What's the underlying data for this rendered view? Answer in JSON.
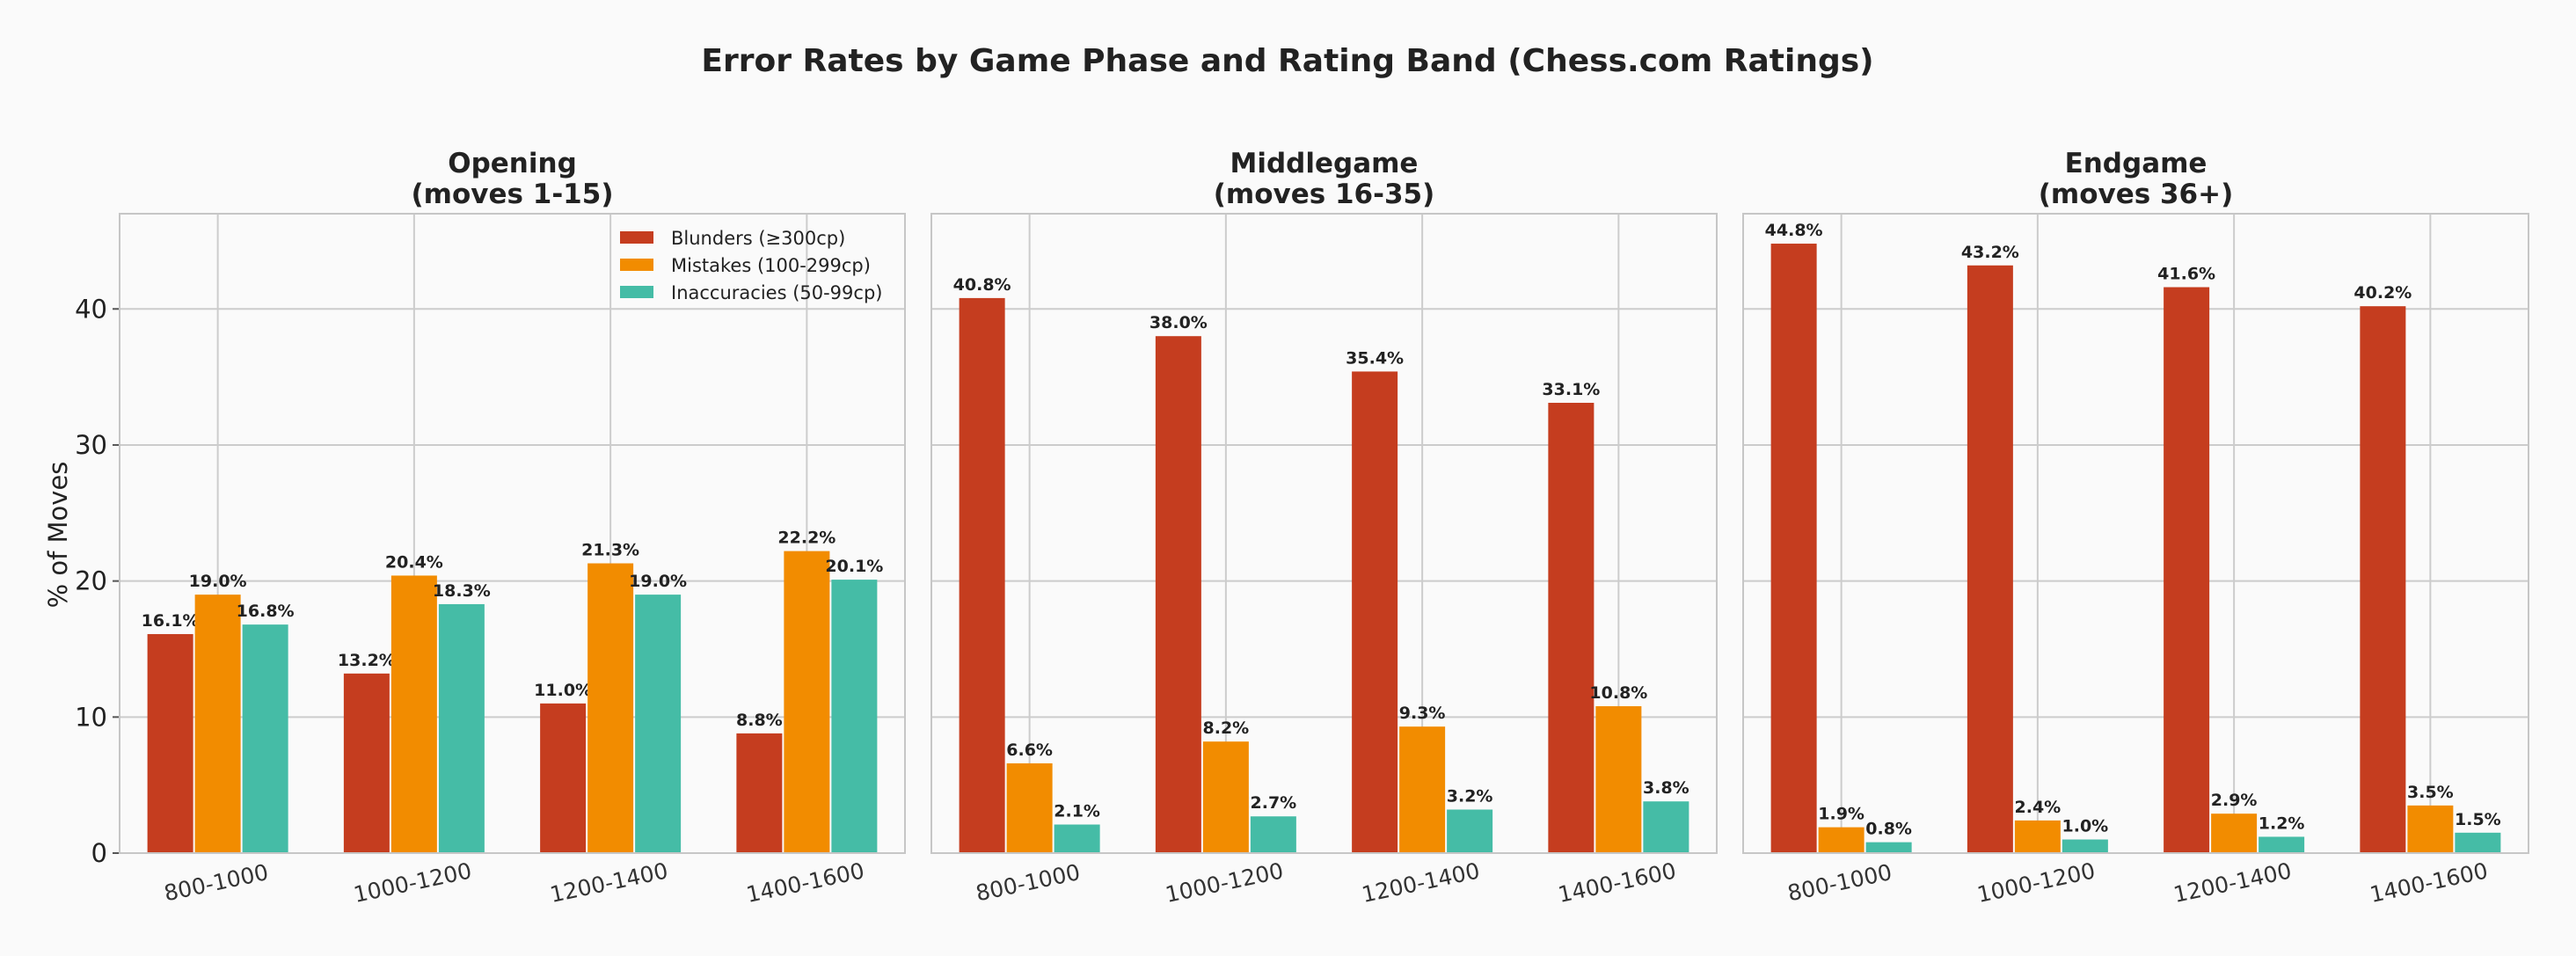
{
  "chart_data": {
    "type": "bar",
    "title": "Error Rates by Game Phase and Rating Band (Chess.com Ratings)",
    "ylabel": "% of Moves",
    "ylim": [
      0,
      47
    ],
    "yticks": [
      0,
      10,
      20,
      30,
      40
    ],
    "grid": true,
    "legend": {
      "placement": "top-right",
      "panel": 0,
      "entries": [
        "Blunders (≥300cp)",
        "Mistakes (100-299cp)",
        "Inaccuracies (50-99cp)"
      ]
    },
    "series_colors": [
      "#c53d1f",
      "#f28c00",
      "#45bca6"
    ],
    "categories": [
      "800-1000",
      "1000-1200",
      "1200-1400",
      "1400-1600"
    ],
    "panels": [
      {
        "title_line1": "Opening",
        "title_line2": "(moves 1-15)",
        "series": [
          {
            "name": "Blunders (≥300cp)",
            "values": [
              16.1,
              13.2,
              11.0,
              8.8
            ]
          },
          {
            "name": "Mistakes (100-299cp)",
            "values": [
              19.0,
              20.4,
              21.3,
              22.2
            ]
          },
          {
            "name": "Inaccuracies (50-99cp)",
            "values": [
              16.8,
              18.3,
              19.0,
              20.1
            ]
          }
        ]
      },
      {
        "title_line1": "Middlegame",
        "title_line2": "(moves 16-35)",
        "series": [
          {
            "name": "Blunders (≥300cp)",
            "values": [
              40.8,
              38.0,
              35.4,
              33.1
            ]
          },
          {
            "name": "Mistakes (100-299cp)",
            "values": [
              6.6,
              8.2,
              9.3,
              10.8
            ]
          },
          {
            "name": "Inaccuracies (50-99cp)",
            "values": [
              2.1,
              2.7,
              3.2,
              3.8
            ]
          }
        ]
      },
      {
        "title_line1": "Endgame",
        "title_line2": "(moves 36+)",
        "series": [
          {
            "name": "Blunders (≥300cp)",
            "values": [
              44.8,
              43.2,
              41.6,
              40.2
            ]
          },
          {
            "name": "Mistakes (100-299cp)",
            "values": [
              1.9,
              2.4,
              2.9,
              3.5
            ]
          },
          {
            "name": "Inaccuracies (50-99cp)",
            "values": [
              0.8,
              1.0,
              1.2,
              1.5
            ]
          }
        ]
      }
    ]
  }
}
